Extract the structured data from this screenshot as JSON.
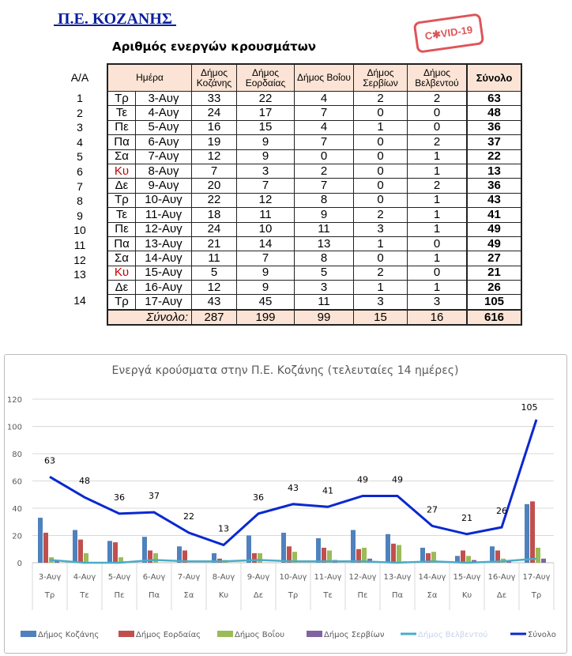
{
  "header": {
    "title": " Π.Ε. ΚΟΖΑΝΗΣ ",
    "stamp": "C✱VID-19",
    "subtitle": "Αριθμός ενεργών κρουσμάτων"
  },
  "table": {
    "aa_label": "Α/Α",
    "columns": [
      "Ημέρα",
      "Δήμος Κοζάνης",
      "Δήμος Εορδαίας",
      "Δήμος Βοΐου",
      "Δήμος Σερβίων",
      "Δήμος Βελβεντού",
      "Σύνολο"
    ],
    "rows": [
      {
        "aa": "1",
        "day": "Τρ",
        "date": "3-Αυγ",
        "v": [
          33,
          22,
          4,
          2,
          2
        ],
        "total": 63
      },
      {
        "aa": "2",
        "day": "Τε",
        "date": "4-Αυγ",
        "v": [
          24,
          17,
          7,
          0,
          0
        ],
        "total": 48
      },
      {
        "aa": "3",
        "day": "Πε",
        "date": "5-Αυγ",
        "v": [
          16,
          15,
          4,
          1,
          0
        ],
        "total": 36
      },
      {
        "aa": "4",
        "day": "Πα",
        "date": "6-Αυγ",
        "v": [
          19,
          9,
          7,
          0,
          2
        ],
        "total": 37
      },
      {
        "aa": "5",
        "day": "Σα",
        "date": "7-Αυγ",
        "v": [
          12,
          9,
          0,
          0,
          1
        ],
        "total": 22
      },
      {
        "aa": "6",
        "day": "Κυ",
        "date": "8-Αυγ",
        "v": [
          7,
          3,
          2,
          0,
          1
        ],
        "total": 13,
        "red": true
      },
      {
        "aa": "7",
        "day": "Δε",
        "date": "9-Αυγ",
        "v": [
          20,
          7,
          7,
          0,
          2
        ],
        "total": 36
      },
      {
        "aa": "8",
        "day": "Τρ",
        "date": "10-Αυγ",
        "v": [
          22,
          12,
          8,
          0,
          1
        ],
        "total": 43
      },
      {
        "aa": "9",
        "day": "Τε",
        "date": "11-Αυγ",
        "v": [
          18,
          11,
          9,
          2,
          1
        ],
        "total": 41
      },
      {
        "aa": "10",
        "day": "Πε",
        "date": "12-Αυγ",
        "v": [
          24,
          10,
          11,
          3,
          1
        ],
        "total": 49
      },
      {
        "aa": "11",
        "day": "Πα",
        "date": "13-Αυγ",
        "v": [
          21,
          14,
          13,
          1,
          0
        ],
        "total": 49
      },
      {
        "aa": "12",
        "day": "Σα",
        "date": "14-Αυγ",
        "v": [
          11,
          7,
          8,
          0,
          1
        ],
        "total": 27
      },
      {
        "aa": "13",
        "day": "Κυ",
        "date": "15-Αυγ",
        "v": [
          5,
          9,
          5,
          2,
          0
        ],
        "total": 21,
        "red": true
      },
      {
        "aa": "",
        "day": "Δε",
        "date": "16-Αυγ",
        "v": [
          12,
          9,
          3,
          1,
          1
        ],
        "total": 26
      },
      {
        "aa": "14",
        "day": "Τρ",
        "date": "17-Αυγ",
        "v": [
          43,
          45,
          11,
          3,
          3
        ],
        "total": 105
      }
    ],
    "sum": {
      "label": "Σύνολο:",
      "v": [
        287,
        199,
        99,
        15,
        16
      ],
      "total": 616
    }
  },
  "chart_data": {
    "type": "bar",
    "title": "Ενεργά κρούσματα στην Π.Ε. Κοζάνης (τελευταίες 14 ημέρες)",
    "categories": [
      "3-Αυγ",
      "4-Αυγ",
      "5-Αυγ",
      "6-Αυγ",
      "7-Αυγ",
      "8-Αυγ",
      "9-Αυγ",
      "10-Αυγ",
      "11-Αυγ",
      "12-Αυγ",
      "13-Αυγ",
      "14-Αυγ",
      "15-Αυγ",
      "16-Αυγ",
      "17-Αυγ"
    ],
    "subcategories": [
      "Τρ",
      "Τε",
      "Πε",
      "Πα",
      "Σα",
      "Κυ",
      "Δε",
      "Τρ",
      "Τε",
      "Πε",
      "Πα",
      "Σα",
      "Κυ",
      "Δε",
      "Τρ"
    ],
    "ylim": [
      0,
      120
    ],
    "yticks": [
      0,
      20,
      40,
      60,
      80,
      100,
      120
    ],
    "grid": true,
    "legend": "bottom",
    "series": [
      {
        "name": "Δήμος Κοζάνης",
        "kind": "bar",
        "color": "#4f81bd",
        "values": [
          33,
          24,
          16,
          19,
          12,
          7,
          20,
          22,
          18,
          24,
          21,
          11,
          5,
          12,
          43
        ]
      },
      {
        "name": "Δήμος Εορδαίας",
        "kind": "bar",
        "color": "#c0504d",
        "values": [
          22,
          17,
          15,
          9,
          9,
          3,
          7,
          12,
          11,
          10,
          14,
          7,
          9,
          9,
          45
        ]
      },
      {
        "name": "Δήμος Βοΐου",
        "kind": "bar",
        "color": "#9bbb59",
        "values": [
          4,
          7,
          4,
          7,
          0,
          2,
          7,
          8,
          9,
          11,
          13,
          8,
          5,
          3,
          11
        ]
      },
      {
        "name": "Δήμος Σερβίων",
        "kind": "bar",
        "color": "#8064a2",
        "values": [
          2,
          0,
          1,
          0,
          0,
          0,
          0,
          0,
          2,
          3,
          1,
          0,
          2,
          1,
          3
        ]
      },
      {
        "name": "Δήμος Βελβεντού",
        "kind": "line",
        "color": "#4bacc6",
        "values": [
          2,
          0,
          0,
          2,
          1,
          1,
          2,
          1,
          1,
          1,
          0,
          1,
          0,
          1,
          3
        ]
      },
      {
        "name": "Σύνολο",
        "kind": "line",
        "color": "#0a28d0",
        "labels": true,
        "values": [
          63,
          48,
          36,
          37,
          22,
          13,
          36,
          43,
          41,
          49,
          49,
          27,
          21,
          26,
          105
        ]
      }
    ]
  }
}
